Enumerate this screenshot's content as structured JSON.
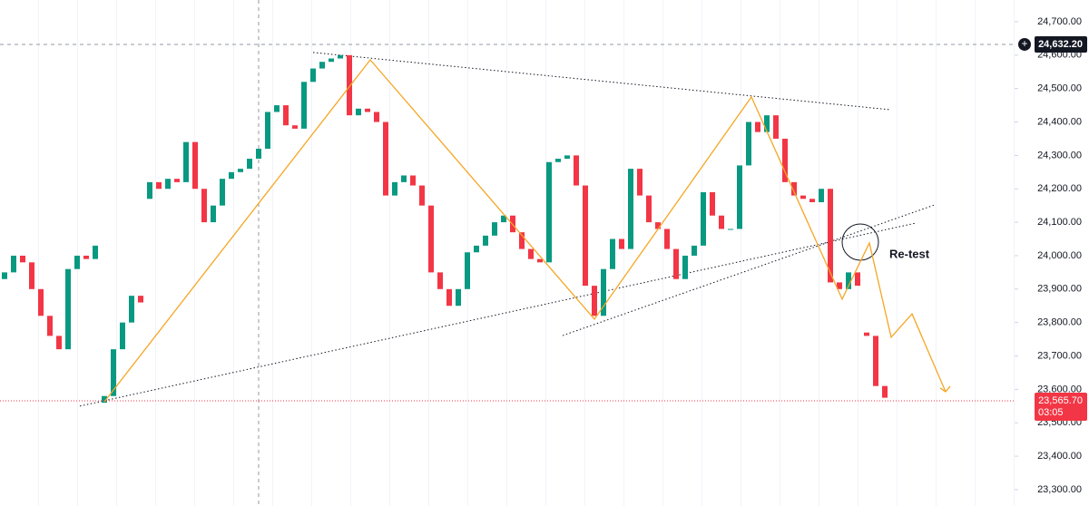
{
  "chart_data": {
    "type": "candlestick",
    "x": [
      0,
      1,
      2,
      3,
      4,
      5,
      6,
      7,
      8,
      9,
      10,
      11,
      12,
      13,
      14,
      15,
      16,
      17,
      18,
      19,
      20,
      21,
      22,
      23,
      24,
      25,
      26,
      27,
      28,
      29,
      30,
      31,
      32,
      33,
      34,
      35,
      36,
      37,
      38,
      39,
      40,
      41,
      42,
      43,
      44,
      45,
      46,
      47,
      48,
      49,
      50,
      51,
      52,
      53,
      54,
      55,
      56,
      57,
      58,
      59,
      60,
      61,
      62,
      63,
      64,
      65,
      66,
      67,
      68,
      69,
      70,
      71,
      72,
      73,
      74,
      75,
      76,
      77,
      78,
      79,
      80,
      81,
      82,
      83,
      84,
      85,
      86,
      87,
      88,
      89,
      90,
      91,
      92,
      93,
      94,
      95,
      96,
      97
    ],
    "open": [
      23930,
      23950,
      24000,
      23980,
      23900,
      23820,
      23760,
      23720,
      23960,
      24000,
      23990,
      23560,
      23580,
      23720,
      23800,
      23880,
      24170,
      24220,
      24200,
      24230,
      24220,
      24340,
      24200,
      24100,
      24150,
      24230,
      24250,
      24260,
      24290,
      24320,
      24430,
      24450,
      24390,
      24380,
      24520,
      24560,
      24580,
      24590,
      24600,
      24420,
      24440,
      24430,
      24400,
      24180,
      24220,
      24240,
      24210,
      24150,
      23950,
      23900,
      23850,
      23900,
      24010,
      24030,
      24060,
      24100,
      24120,
      24070,
      24020,
      23990,
      23980,
      24280,
      24290,
      24300,
      24210,
      23910,
      23820,
      23960,
      24050,
      24020,
      24260,
      24180,
      24100,
      24080,
      24020,
      23930,
      24000,
      24030,
      24190,
      24120,
      24080,
      24080,
      24270,
      24400,
      24370,
      24420,
      24350,
      24220,
      24180,
      24170,
      24160,
      24200,
      23920,
      23900,
      23950,
      23770,
      23760,
      23610
    ],
    "close": [
      23950,
      24000,
      23980,
      23900,
      23820,
      23760,
      23720,
      23960,
      24000,
      23990,
      24030,
      23580,
      23720,
      23800,
      23880,
      23860,
      24220,
      24200,
      24230,
      24220,
      24340,
      24200,
      24100,
      24150,
      24230,
      24250,
      24260,
      24290,
      24320,
      24430,
      24450,
      24390,
      24380,
      24520,
      24560,
      24580,
      24590,
      24600,
      24420,
      24440,
      24430,
      24400,
      24180,
      24220,
      24240,
      24210,
      24150,
      23950,
      23900,
      23850,
      23900,
      24010,
      24030,
      24060,
      24100,
      24120,
      24070,
      24020,
      23990,
      23980,
      24280,
      24290,
      24300,
      24210,
      23910,
      23820,
      23960,
      24050,
      24020,
      24260,
      24180,
      24100,
      24080,
      24020,
      23930,
      24000,
      24030,
      24190,
      24120,
      24080,
      24080,
      24270,
      24400,
      24370,
      24420,
      24350,
      24220,
      24180,
      24170,
      24160,
      24200,
      23920,
      23900,
      23950,
      23910,
      23760,
      23610,
      23575
    ],
    "up_color": "#089981",
    "down_color": "#f23645",
    "xlim": [
      -0.5,
      111.3
    ],
    "ylim": [
      23251,
      24765
    ],
    "yticks": [
      {
        "value": 23300,
        "label": "23,300.00"
      },
      {
        "value": 23400,
        "label": "23,400.00"
      },
      {
        "value": 23500,
        "label": "23,500.00"
      },
      {
        "value": 23600,
        "label": "23,600.00"
      },
      {
        "value": 23700,
        "label": "23,700.00"
      },
      {
        "value": 23800,
        "label": "23,800.00"
      },
      {
        "value": 23900,
        "label": "23,900.00"
      },
      {
        "value": 24000,
        "label": "24,000.00"
      },
      {
        "value": 24100,
        "label": "24,100.00"
      },
      {
        "value": 24200,
        "label": "24,200.00"
      },
      {
        "value": 24300,
        "label": "24,300.00"
      },
      {
        "value": 24400,
        "label": "24,400.00"
      },
      {
        "value": 24500,
        "label": "24,500.00"
      },
      {
        "value": 24600,
        "label": "24,600.00"
      },
      {
        "value": 24700,
        "label": "24,700.00"
      }
    ],
    "crosshair_price": {
      "value": 24632.2,
      "label": "24,632.20"
    },
    "last_price": {
      "value": 23565.7,
      "label": "23,565.70"
    },
    "countdown": "03:05",
    "trendlines": [
      {
        "x": [
          34,
          97.5
        ],
        "y": [
          24608,
          24437
        ]
      },
      {
        "x": [
          8.3,
          100.5
        ],
        "y": [
          23550,
          24098
        ]
      },
      {
        "x": [
          61.5,
          102.5
        ],
        "y": [
          23761,
          24152
        ]
      }
    ],
    "projection": {
      "color": "#f5a623",
      "x": [
        11,
        40.3,
        65,
        82.3,
        92.3,
        95.3,
        97.7,
        100,
        103.7
      ],
      "y": [
        23563,
        24586,
        23810,
        24475,
        23870,
        24038,
        23756,
        23826,
        23593
      ]
    },
    "annotation": "Re-test"
  }
}
